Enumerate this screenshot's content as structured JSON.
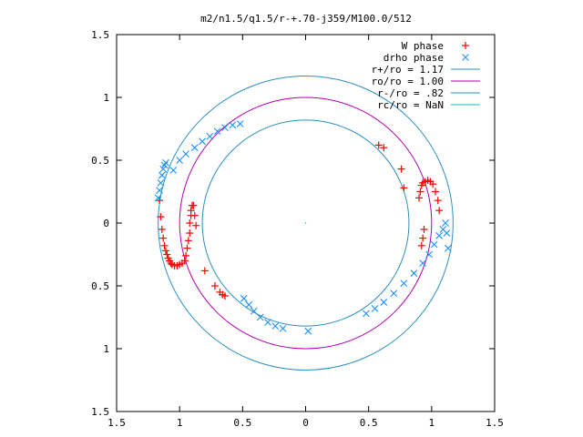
{
  "chart_data": {
    "type": "scatter",
    "title": "m2/n1.5/q1.5/r-+.70-j359/M100.0/512",
    "xlabel": "",
    "ylabel": "",
    "xlim": [
      -1.5,
      1.5
    ],
    "ylim": [
      -1.5,
      1.5
    ],
    "x_ticks": [
      -1.5,
      -1,
      -0.5,
      0,
      0.5,
      1,
      1.5
    ],
    "y_ticks": [
      -1.5,
      -1,
      -0.5,
      0,
      0.5,
      1,
      1.5
    ],
    "x_tick_labels": [
      "1.5",
      "1",
      "0.5",
      "0",
      "0.5",
      "1",
      "1.5"
    ],
    "y_tick_labels": [
      "1.5",
      "1",
      "0.5",
      "0",
      "0.5",
      "1",
      "1.5"
    ],
    "grid": false,
    "legend_position": "top-right",
    "series": [
      {
        "name": "W phase",
        "marker": "plus",
        "color": "#ff0000",
        "x": [
          -1.16,
          -1.15,
          -1.14,
          -1.13,
          -1.12,
          -1.11,
          -1.1,
          -1.09,
          -1.08,
          -1.07,
          -1.06,
          -1.04,
          -1.02,
          -1.0,
          -0.98,
          -0.96,
          -0.95,
          -0.94,
          -0.93,
          -0.92,
          -0.92,
          -0.91,
          -0.91,
          -0.9,
          -0.89,
          -0.88,
          -0.87,
          -0.8,
          -0.72,
          -0.68,
          -0.66,
          -0.64,
          0.58,
          0.62,
          0.76,
          0.78,
          0.9,
          0.91,
          0.92,
          0.93,
          0.95,
          0.97,
          0.99,
          1.01,
          1.03,
          1.05,
          1.06,
          0.94,
          0.93,
          0.92
        ],
        "y": [
          0.18,
          0.05,
          -0.05,
          -0.12,
          -0.18,
          -0.22,
          -0.25,
          -0.28,
          -0.3,
          -0.32,
          -0.33,
          -0.34,
          -0.34,
          -0.33,
          -0.32,
          -0.3,
          -0.26,
          -0.2,
          -0.14,
          -0.08,
          0.0,
          0.06,
          0.1,
          0.14,
          0.14,
          0.06,
          -0.02,
          -0.38,
          -0.5,
          -0.55,
          -0.57,
          -0.58,
          0.62,
          0.6,
          0.43,
          0.28,
          0.2,
          0.25,
          0.3,
          0.32,
          0.33,
          0.34,
          0.33,
          0.31,
          0.25,
          0.18,
          0.1,
          -0.05,
          -0.12,
          -0.18
        ]
      },
      {
        "name": "drho phase",
        "marker": "cross",
        "color": "#1e90ff",
        "x": [
          -1.17,
          -1.16,
          -1.15,
          -1.14,
          -1.13,
          -1.12,
          -1.11,
          -1.05,
          -1.0,
          -0.95,
          -0.88,
          -0.82,
          -0.76,
          -0.7,
          -0.64,
          -0.58,
          -0.52,
          -0.49,
          -0.45,
          -0.41,
          -0.36,
          -0.3,
          -0.24,
          -0.18,
          0.02,
          0.48,
          0.55,
          0.62,
          0.7,
          0.78,
          0.86,
          0.93,
          0.98,
          1.02,
          1.06,
          1.09,
          1.11,
          1.12,
          1.13
        ],
        "y": [
          0.2,
          0.26,
          0.32,
          0.38,
          0.43,
          0.46,
          0.48,
          0.42,
          0.5,
          0.55,
          0.6,
          0.65,
          0.69,
          0.73,
          0.76,
          0.78,
          0.79,
          -0.6,
          -0.65,
          -0.7,
          -0.75,
          -0.79,
          -0.82,
          -0.84,
          -0.86,
          -0.72,
          -0.68,
          -0.63,
          -0.56,
          -0.48,
          -0.4,
          -0.32,
          -0.25,
          -0.17,
          -0.1,
          -0.05,
          0.0,
          -0.08,
          -0.2
        ]
      },
      {
        "name": "r+/ro = 1.17",
        "type": "circle",
        "radius": 1.17,
        "color": "#2a8fbf"
      },
      {
        "name": "ro/ro = 1.00",
        "type": "circle",
        "radius": 1.0,
        "color": "#b000b0"
      },
      {
        "name": "r-/ro = .82",
        "type": "circle",
        "radius": 0.82,
        "color": "#2a8fbf"
      },
      {
        "name": "rc/ro = NaN",
        "type": "circle",
        "radius": null,
        "color": "#00c0c0"
      }
    ]
  }
}
